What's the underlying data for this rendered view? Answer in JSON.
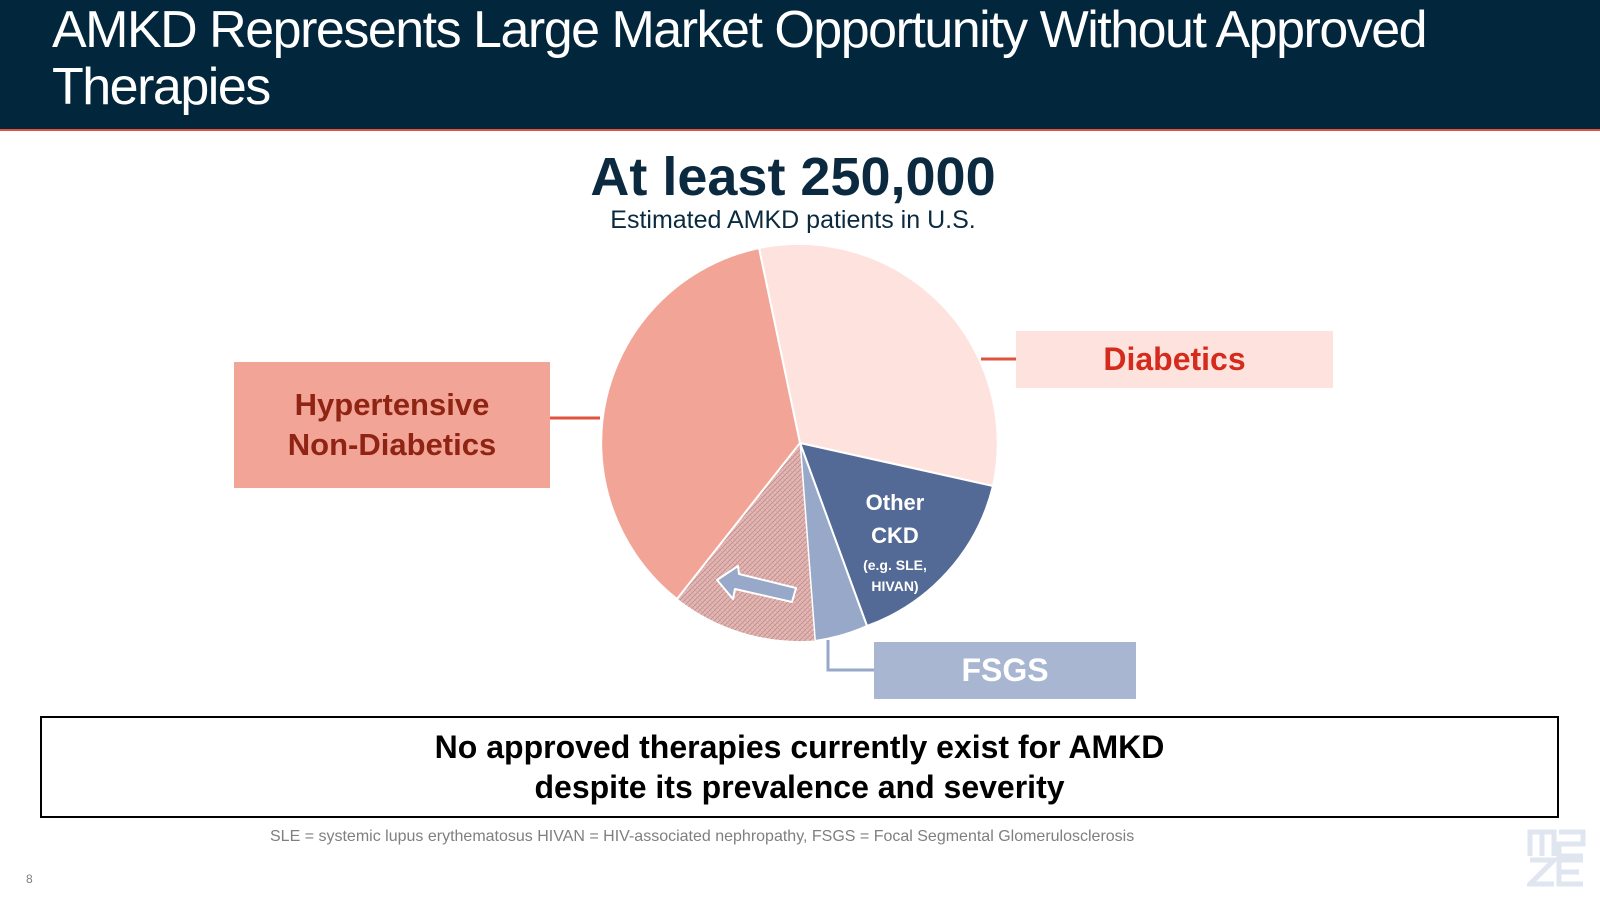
{
  "header": {
    "title": "AMKD Represents Large Market Opportunity Without Approved Therapies"
  },
  "headline": "At least 250,000",
  "subheadline": "Estimated AMKD patients in U.S.",
  "segments": {
    "hypertensive": {
      "line1": "Hypertensive",
      "line2": "Non-Diabetics"
    },
    "diabetics": {
      "label": "Diabetics"
    },
    "other_ckd": {
      "line1": "Other",
      "line2": "CKD",
      "note_line1": "(e.g. SLE,",
      "note_line2": "HIVAN)"
    },
    "fsgs": {
      "label": "FSGS"
    }
  },
  "colors": {
    "header_bg": "#02263b",
    "accent_red": "#e2533f",
    "hypertensive": "#f2a597",
    "diabetics": "#fde2dd",
    "other_ckd": "#536a96",
    "fsgs": "#97a8c8",
    "amkd_hatch": "#d89c95"
  },
  "callout": {
    "line1": "No approved therapies currently exist for AMKD",
    "line2": "despite its prevalence and severity"
  },
  "footnote": "SLE = systemic lupus erythematosus HIVAN = HIV-associated nephropathy, FSGS = Focal Segmental Glomerulosclerosis",
  "page_number": "8",
  "logo_icon": "maze-logo-icon"
}
